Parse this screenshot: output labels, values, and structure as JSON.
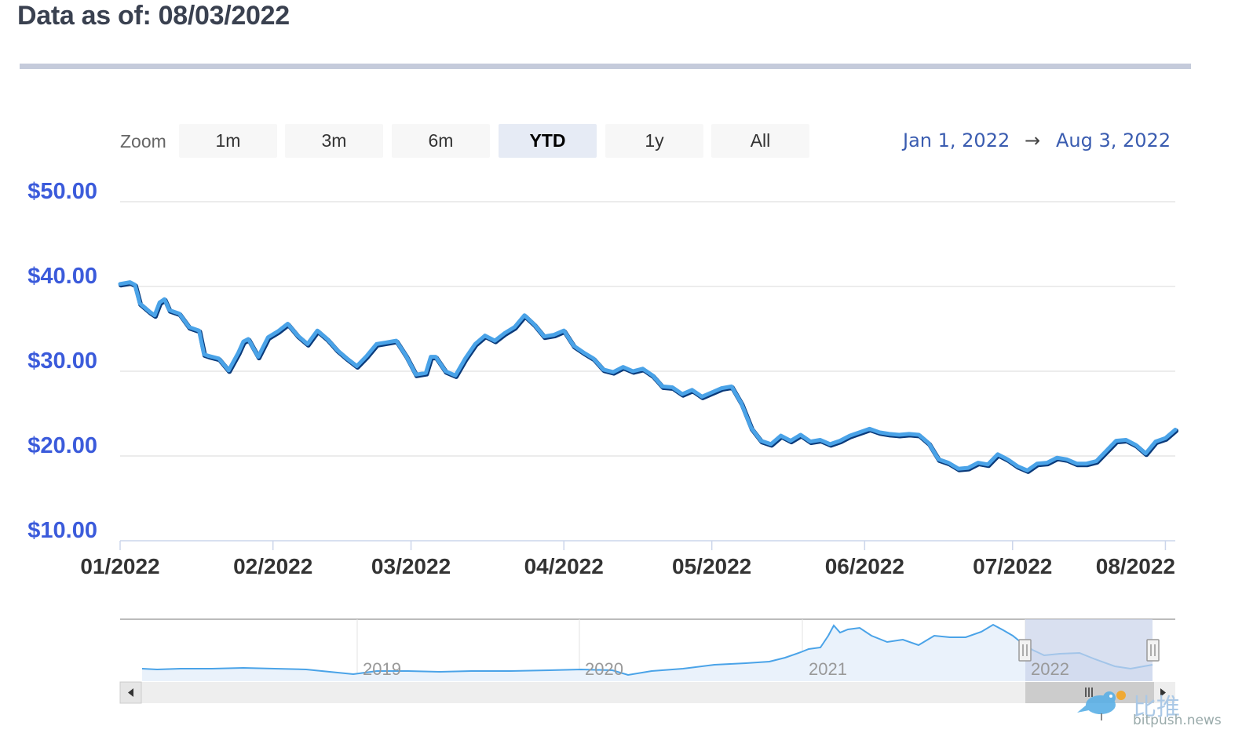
{
  "header": {
    "title": "Data as of: 08/03/2022"
  },
  "zoom": {
    "label": "Zoom",
    "buttons": [
      "1m",
      "3m",
      "6m",
      "YTD",
      "1y",
      "All"
    ],
    "active": "YTD"
  },
  "range": {
    "from": "Jan 1, 2022",
    "arrow": "→",
    "to": "Aug 3, 2022"
  },
  "colors": {
    "line": "#4aa3e8",
    "line_shadow": "#0a3a7a",
    "ylabel": "#3b5bdb",
    "navigator_fill": "#eaf2fb",
    "navigator_mask": "#c9d3ea"
  },
  "watermark": {
    "text": "比推",
    "url": "bitpush.news"
  },
  "chart_data": {
    "type": "line",
    "title": "",
    "xlabel": "",
    "ylabel": "",
    "ylim": [
      10,
      50
    ],
    "y_ticks": [
      "$10.00",
      "$20.00",
      "$30.00",
      "$40.00",
      "$50.00"
    ],
    "x_ticks": [
      "01/2022",
      "02/2022",
      "03/2022",
      "04/2022",
      "05/2022",
      "06/2022",
      "07/2022",
      "08/2022"
    ],
    "x_tick_days": [
      0,
      31,
      59,
      90,
      120,
      151,
      181,
      212
    ],
    "x_range_days": [
      0,
      214
    ],
    "series": [
      {
        "x_days": [
          0,
          2,
          3,
          4,
          5,
          6,
          7,
          8,
          9,
          10,
          12,
          14,
          16,
          17,
          18,
          20,
          22,
          24,
          25,
          26,
          28,
          30,
          32,
          34,
          36,
          38,
          40,
          42,
          44,
          46,
          48,
          50,
          52,
          54,
          56,
          58,
          60,
          62,
          63,
          64,
          66,
          68,
          70,
          72,
          74,
          76,
          78,
          80,
          82,
          84,
          86,
          88,
          90,
          92,
          94,
          96,
          98,
          100,
          102,
          104,
          106,
          108,
          110,
          112,
          114,
          116,
          118,
          120,
          122,
          124,
          126,
          128,
          130,
          132,
          134,
          136,
          138,
          140,
          142,
          144,
          146,
          148,
          150,
          152,
          154,
          156,
          158,
          160,
          162,
          164,
          166,
          168,
          170,
          172,
          174,
          176,
          178,
          180,
          182,
          184,
          186,
          188,
          190,
          192,
          194,
          196,
          198,
          200,
          202,
          204,
          206,
          208,
          210,
          212,
          214
        ],
        "values": [
          40.3,
          40.5,
          40.2,
          38,
          37.5,
          37,
          36.6,
          38.1,
          38.5,
          37.2,
          36.8,
          35.2,
          34.8,
          32,
          31.8,
          31.5,
          30.1,
          32.2,
          33.5,
          33.8,
          31.7,
          34,
          34.7,
          35.6,
          34.2,
          33.2,
          34.8,
          33.8,
          32.5,
          31.5,
          30.6,
          31.8,
          33.2,
          33.4,
          33.6,
          31.8,
          29.6,
          29.8,
          31.7,
          31.7,
          30,
          29.5,
          31.5,
          33.2,
          34.2,
          33.6,
          34.5,
          35.2,
          36.6,
          35.5,
          34.1,
          34.3,
          34.8,
          33,
          32.2,
          31.5,
          30.2,
          29.9,
          30.5,
          30,
          30.3,
          29.5,
          28.2,
          28.1,
          27.3,
          27.8,
          27,
          27.5,
          28,
          28.2,
          26.2,
          23.3,
          21.8,
          21.4,
          22.4,
          21.8,
          22.5,
          21.7,
          21.9,
          21.4,
          21.8,
          22.4,
          22.8,
          23.2,
          22.8,
          22.6,
          22.5,
          22.6,
          22.5,
          21.5,
          19.6,
          19.2,
          18.5,
          18.6,
          19.2,
          19,
          20.2,
          19.6,
          18.8,
          18.3,
          19.1,
          19.2,
          19.8,
          19.6,
          19.1,
          19.1,
          19.4,
          20.6,
          21.8,
          21.9,
          21.3,
          20.3,
          21.7,
          22.1,
          23.1
        ]
      }
    ]
  }
}
